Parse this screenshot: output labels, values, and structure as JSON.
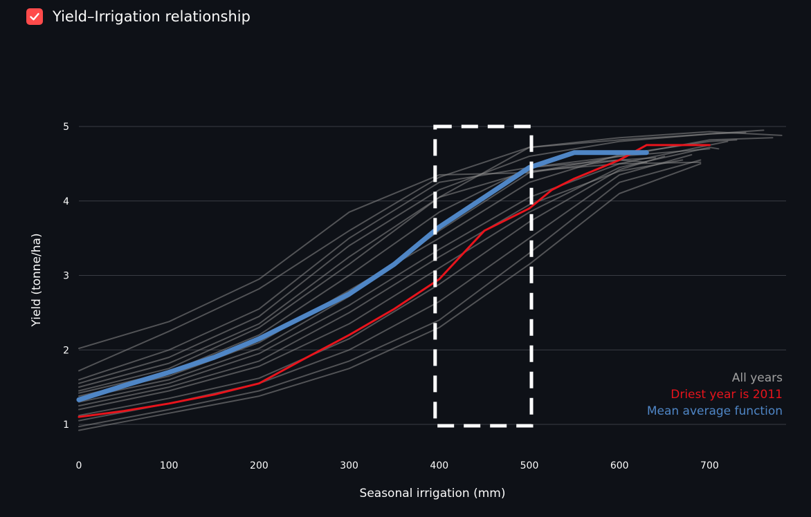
{
  "header": {
    "checkbox_label": "Yield–Irrigation relationship",
    "checkbox_checked": true,
    "checkbox_color": "#ff4b4b"
  },
  "chart_data": {
    "type": "line",
    "title": "",
    "xlabel": "Seasonal irrigation (mm)",
    "ylabel": "Yield (tonne/ha)",
    "xlim": [
      0,
      785
    ],
    "ylim": [
      0.9,
      5.3
    ],
    "x_ticks": [
      0,
      100,
      200,
      300,
      400,
      500,
      600,
      700
    ],
    "y_ticks": [
      1,
      2,
      3,
      4,
      5
    ],
    "grid": "horizontal",
    "legend_position": "bottom-right",
    "legend": [
      {
        "label": "All years",
        "color": "#a0a0a0"
      },
      {
        "label": "Driest year is 2011",
        "color": "#e8141c"
      },
      {
        "label": "Mean average function",
        "color": "#4f86c6"
      }
    ],
    "highlight_box": {
      "x": [
        400,
        500
      ],
      "y": [
        1.0,
        5.0
      ],
      "style": "dashed",
      "color": "#ffffff"
    },
    "series": [
      {
        "group": "All years",
        "x": [
          0,
          100,
          200,
          300,
          400,
          500,
          600,
          700,
          770
        ],
        "y": [
          2.02,
          2.38,
          2.95,
          3.85,
          4.35,
          4.38,
          4.6,
          4.82,
          4.85
        ]
      },
      {
        "group": "All years",
        "x": [
          0,
          100,
          200,
          300,
          400,
          500,
          600,
          700,
          780
        ],
        "y": [
          1.72,
          2.25,
          2.82,
          3.6,
          4.32,
          4.72,
          4.85,
          4.93,
          4.88
        ]
      },
      {
        "group": "All years",
        "x": [
          0,
          100,
          200,
          300,
          400,
          500,
          600,
          700,
          760
        ],
        "y": [
          1.55,
          1.9,
          2.45,
          3.4,
          4.15,
          4.6,
          4.8,
          4.9,
          4.95
        ]
      },
      {
        "group": "All years",
        "x": [
          0,
          100,
          200,
          300,
          400,
          500,
          600,
          700,
          740
        ],
        "y": [
          1.45,
          1.75,
          2.3,
          3.15,
          4.05,
          4.72,
          4.82,
          4.9,
          4.92
        ]
      },
      {
        "group": "All years",
        "x": [
          0,
          100,
          200,
          300,
          400,
          500,
          600,
          700,
          730
        ],
        "y": [
          1.38,
          1.65,
          2.1,
          2.8,
          3.5,
          4.25,
          4.62,
          4.8,
          4.82
        ]
      },
      {
        "group": "All years",
        "x": [
          0,
          100,
          200,
          300,
          400,
          500,
          600,
          700,
          720
        ],
        "y": [
          1.3,
          1.55,
          1.95,
          2.6,
          3.35,
          4.05,
          4.5,
          4.75,
          4.8
        ]
      },
      {
        "group": "All years",
        "x": [
          0,
          100,
          200,
          300,
          400,
          500,
          600,
          700,
          710
        ],
        "y": [
          1.2,
          1.45,
          1.78,
          2.35,
          3.1,
          3.85,
          4.45,
          4.72,
          4.7
        ]
      },
      {
        "group": "All years",
        "x": [
          0,
          100,
          200,
          300,
          400,
          500,
          600,
          650
        ],
        "y": [
          1.12,
          1.35,
          1.62,
          2.15,
          2.88,
          3.72,
          4.42,
          4.6
        ]
      },
      {
        "group": "All years",
        "x": [
          0,
          100,
          200,
          300,
          400,
          500,
          600,
          680
        ],
        "y": [
          1.05,
          1.28,
          1.55,
          2.0,
          2.65,
          3.5,
          4.35,
          4.62
        ]
      },
      {
        "group": "All years",
        "x": [
          0,
          100,
          200,
          300,
          400,
          500,
          600,
          690
        ],
        "y": [
          0.97,
          1.2,
          1.45,
          1.85,
          2.4,
          3.3,
          4.25,
          4.55
        ]
      },
      {
        "group": "All years",
        "x": [
          0,
          100,
          200,
          300,
          400,
          500,
          600,
          690
        ],
        "y": [
          0.92,
          1.15,
          1.38,
          1.75,
          2.3,
          3.15,
          4.1,
          4.5
        ]
      },
      {
        "group": "All years",
        "x": [
          0,
          100,
          200,
          300,
          400,
          500,
          600,
          670
        ],
        "y": [
          1.25,
          1.5,
          1.85,
          2.5,
          3.25,
          3.95,
          4.4,
          4.55
        ]
      },
      {
        "group": "All years",
        "x": [
          0,
          100,
          200,
          300,
          400,
          500,
          600,
          640
        ],
        "y": [
          1.35,
          1.6,
          2.02,
          2.72,
          3.6,
          4.38,
          4.55,
          4.58
        ]
      },
      {
        "group": "All years",
        "x": [
          0,
          100,
          200,
          300,
          400,
          500,
          600,
          630
        ],
        "y": [
          1.42,
          1.7,
          2.2,
          3.0,
          3.85,
          4.45,
          4.55,
          4.52
        ]
      },
      {
        "group": "All years",
        "x": [
          0,
          100,
          200,
          300,
          400,
          500,
          600,
          690
        ],
        "y": [
          1.5,
          1.82,
          2.35,
          3.25,
          4.05,
          4.4,
          4.5,
          4.52
        ]
      },
      {
        "group": "All years",
        "x": [
          0,
          100,
          200,
          300,
          400,
          500,
          600,
          700
        ],
        "y": [
          1.6,
          2.0,
          2.55,
          3.5,
          4.25,
          4.45,
          4.6,
          4.7
        ]
      },
      {
        "group": "Driest year is 2011",
        "x": [
          0,
          50,
          100,
          150,
          200,
          250,
          300,
          350,
          400,
          450,
          500,
          525,
          550,
          600,
          630,
          700
        ],
        "y": [
          1.1,
          1.18,
          1.28,
          1.4,
          1.55,
          1.88,
          2.2,
          2.55,
          2.95,
          3.6,
          3.9,
          4.15,
          4.3,
          4.55,
          4.75,
          4.75
        ]
      },
      {
        "group": "Mean average function",
        "x": [
          0,
          50,
          100,
          150,
          200,
          250,
          300,
          350,
          400,
          450,
          500,
          550,
          630
        ],
        "y": [
          1.33,
          1.52,
          1.7,
          1.9,
          2.15,
          2.45,
          2.75,
          3.15,
          3.65,
          4.05,
          4.45,
          4.65,
          4.65
        ]
      }
    ]
  }
}
